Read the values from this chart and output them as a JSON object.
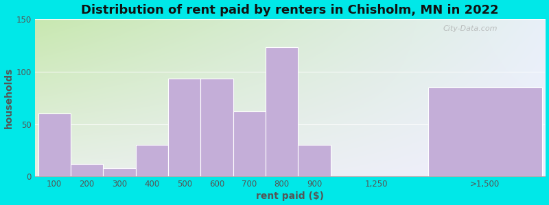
{
  "title": "Distribution of rent paid by renters in Chisholm, MN in 2022",
  "xlabel": "rent paid ($)",
  "ylabel": "households",
  "bar_labels": [
    "100",
    "200",
    "300",
    "400",
    "500",
    "600",
    "700",
    "800",
    "900",
    "1,250",
    ">1,500"
  ],
  "bar_values": [
    60,
    12,
    8,
    30,
    93,
    93,
    62,
    123,
    30,
    0,
    85
  ],
  "bar_color": "#c4aed8",
  "bar_edge_color": "#ffffff",
  "ylim": [
    0,
    150
  ],
  "yticks": [
    0,
    50,
    100,
    150
  ],
  "background_outer": "#00e8e8",
  "grad_color_topleft": "#c8e8b0",
  "grad_color_bottomright": "#f0f0ff",
  "title_fontsize": 13,
  "axis_label_fontsize": 10,
  "tick_fontsize": 8.5,
  "watermark": "City-Data.com"
}
